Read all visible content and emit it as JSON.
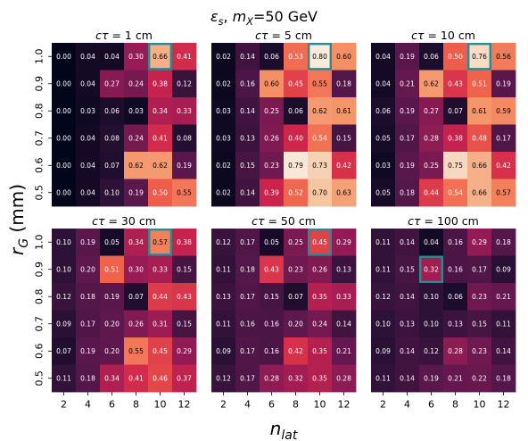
{
  "figure": {
    "title": "ε_s, m_X=50 GeV",
    "xlabel": "n_lat",
    "ylabel": "r_G (mm)"
  },
  "chart_data": [
    {
      "type": "heatmap",
      "title": "cτ = 1 cm",
      "x": [
        2,
        4,
        6,
        8,
        10,
        12
      ],
      "y": [
        1.0,
        0.9,
        0.8,
        0.7,
        0.6,
        0.5
      ],
      "values": [
        [
          "0.00",
          "0.04",
          "0.04",
          "0.30",
          "0.66",
          "0.41"
        ],
        [
          "0.00",
          "0.04",
          "0.27",
          "0.24",
          "0.38",
          "0.12"
        ],
        [
          "0.00",
          "0.03",
          "0.06",
          "0.03",
          "0.34",
          "0.33"
        ],
        [
          "0.00",
          "0.04",
          "0.08",
          "0.24",
          "0.41",
          "0.08"
        ],
        [
          "0.00",
          "0.04",
          "0.07",
          "0.62",
          "0.62",
          "0.19"
        ],
        [
          "0.00",
          "0.04",
          "0.10",
          "0.19",
          "0.50",
          "0.55"
        ]
      ],
      "highlight": [
        0,
        4
      ]
    },
    {
      "type": "heatmap",
      "title": "cτ = 5 cm",
      "x": [
        2,
        4,
        6,
        8,
        10,
        12
      ],
      "y": [
        1.0,
        0.9,
        0.8,
        0.7,
        0.6,
        0.5
      ],
      "values": [
        [
          "0.02",
          "0.14",
          "0.06",
          "0.53",
          "0.80",
          "0.60"
        ],
        [
          "0.02",
          "0.16",
          "0.60",
          "0.45",
          "0.55",
          "0.18"
        ],
        [
          "0.03",
          "0.14",
          "0.25",
          "0.06",
          "0.62",
          "0.61"
        ],
        [
          "0.03",
          "0.13",
          "0.26",
          "0.40",
          "0.54",
          "0.15"
        ],
        [
          "0.02",
          "0.15",
          "0.23",
          "0.79",
          "0.73",
          "0.42"
        ],
        [
          "0.02",
          "0.14",
          "0.39",
          "0.52",
          "0.70",
          "0.63"
        ]
      ],
      "highlight": [
        0,
        4
      ]
    },
    {
      "type": "heatmap",
      "title": "cτ = 10 cm",
      "x": [
        2,
        4,
        6,
        8,
        10,
        12
      ],
      "y": [
        1.0,
        0.9,
        0.8,
        0.7,
        0.6,
        0.5
      ],
      "values": [
        [
          "0.04",
          "0.19",
          "0.06",
          "0.50",
          "0.76",
          "0.56"
        ],
        [
          "0.04",
          "0.21",
          "0.62",
          "0.43",
          "0.51",
          "0.19"
        ],
        [
          "0.06",
          "0.19",
          "0.27",
          "0.07",
          "0.61",
          "0.59"
        ],
        [
          "0.05",
          "0.17",
          "0.28",
          "0.38",
          "0.48",
          "0.17"
        ],
        [
          "0.03",
          "0.19",
          "0.25",
          "0.75",
          "0.66",
          "0.42"
        ],
        [
          "0.05",
          "0.18",
          "0.44",
          "0.54",
          "0.66",
          "0.57"
        ]
      ],
      "highlight": [
        0,
        4
      ]
    },
    {
      "type": "heatmap",
      "title": "cτ = 30 cm",
      "x": [
        2,
        4,
        6,
        8,
        10,
        12
      ],
      "y": [
        1.0,
        0.9,
        0.8,
        0.7,
        0.6,
        0.5
      ],
      "values": [
        [
          "0.10",
          "0.19",
          "0.05",
          "0.34",
          "0.57",
          "0.38"
        ],
        [
          "0.10",
          "0.20",
          "0.51",
          "0.30",
          "0.33",
          "0.15"
        ],
        [
          "0.12",
          "0.18",
          "0.19",
          "0.07",
          "0.44",
          "0.43"
        ],
        [
          "0.09",
          "0.17",
          "0.20",
          "0.26",
          "0.31",
          "0.15"
        ],
        [
          "0.07",
          "0.19",
          "0.20",
          "0.55",
          "0.45",
          "0.29"
        ],
        [
          "0.11",
          "0.18",
          "0.34",
          "0.41",
          "0.46",
          "0.37"
        ]
      ],
      "highlight": [
        0,
        4
      ]
    },
    {
      "type": "heatmap",
      "title": "cτ = 50 cm",
      "x": [
        2,
        4,
        6,
        8,
        10,
        12
      ],
      "y": [
        1.0,
        0.9,
        0.8,
        0.7,
        0.6,
        0.5
      ],
      "values": [
        [
          "0.12",
          "0.17",
          "0.05",
          "0.25",
          "0.45",
          "0.29"
        ],
        [
          "0.11",
          "0.18",
          "0.43",
          "0.23",
          "0.26",
          "0.13"
        ],
        [
          "0.13",
          "0.17",
          "0.15",
          "0.07",
          "0.35",
          "0.33"
        ],
        [
          "0.11",
          "0.16",
          "0.16",
          "0.20",
          "0.24",
          "0.14"
        ],
        [
          "0.09",
          "0.17",
          "0.16",
          "0.42",
          "0.35",
          "0.21"
        ],
        [
          "0.12",
          "0.17",
          "0.28",
          "0.32",
          "0.35",
          "0.28"
        ]
      ],
      "highlight": [
        0,
        4
      ]
    },
    {
      "type": "heatmap",
      "title": "cτ = 100 cm",
      "x": [
        2,
        4,
        6,
        8,
        10,
        12
      ],
      "y": [
        1.0,
        0.9,
        0.8,
        0.7,
        0.6,
        0.5
      ],
      "values": [
        [
          "0.11",
          "0.14",
          "0.04",
          "0.16",
          "0.29",
          "0.18"
        ],
        [
          "0.11",
          "0.15",
          "0.32",
          "0.16",
          "0.17",
          "0.09"
        ],
        [
          "0.12",
          "0.14",
          "0.10",
          "0.06",
          "0.23",
          "0.21"
        ],
        [
          "0.10",
          "0.13",
          "0.10",
          "0.13",
          "0.15",
          "0.11"
        ],
        [
          "0.09",
          "0.14",
          "0.12",
          "0.28",
          "0.23",
          "0.14"
        ],
        [
          "0.11",
          "0.14",
          "0.19",
          "0.21",
          "0.22",
          "0.18"
        ]
      ],
      "highlight": [
        1,
        2
      ]
    }
  ],
  "colors": {
    "highlight_border": "#2a8a8f",
    "colormap": "rocket"
  }
}
